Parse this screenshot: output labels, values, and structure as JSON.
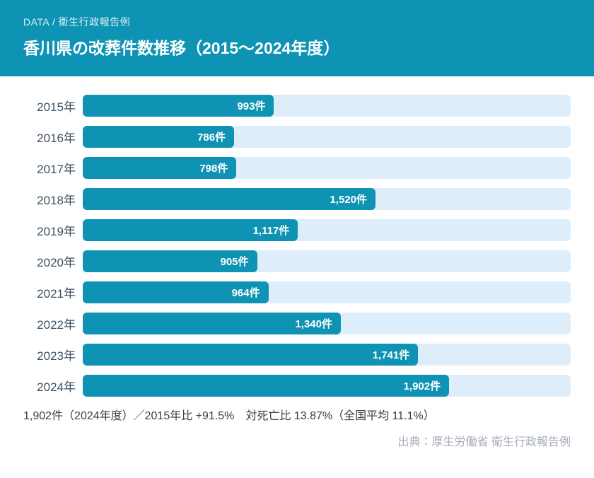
{
  "header": {
    "eyebrow": "DATA / 衛生行政報告例",
    "title": "香川県の改葬件数推移（2015～2024年度）"
  },
  "chart_data": {
    "type": "bar",
    "orientation": "horizontal",
    "title": "香川県の改葬件数推移（2015～2024年度）",
    "categories": [
      "2015年",
      "2016年",
      "2017年",
      "2018年",
      "2019年",
      "2020年",
      "2021年",
      "2022年",
      "2023年",
      "2024年"
    ],
    "values": [
      993,
      786,
      798,
      1520,
      1117,
      905,
      964,
      1340,
      1741,
      1902
    ],
    "value_labels": [
      "993件",
      "786件",
      "798件",
      "1,520件",
      "1,117件",
      "905件",
      "964件",
      "1,340件",
      "1,741件",
      "1,902件"
    ],
    "unit": "件",
    "xlabel": "",
    "ylabel": "",
    "xlim": [
      0,
      2533
    ],
    "grid": false,
    "legend": "none",
    "bar_color": "#0f93b4",
    "track_color": "#ddeefa"
  },
  "footer": {
    "summary": "1,902件（2024年度）／2015年比 +91.5%　対死亡比 13.87%（全国平均 11.1%）",
    "source": "出典：厚生労働省 衛生行政報告例"
  },
  "colors": {
    "accent": "#0f93b4",
    "track": "#ddeefa",
    "header_bg": "#0f93b4"
  }
}
